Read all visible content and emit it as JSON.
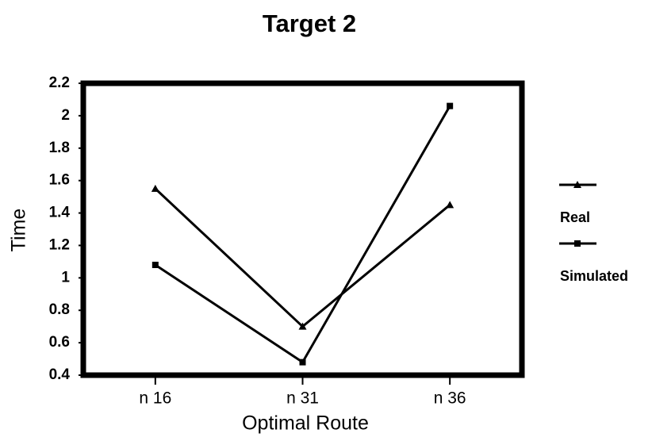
{
  "chart_data": {
    "type": "line",
    "title": "Target 2",
    "x_label": "Optimal Route",
    "y_label": "Time",
    "categories": [
      "n 16",
      "n 31",
      "n 36"
    ],
    "series": [
      {
        "name": "Real",
        "color": "#000000",
        "marker": "triangle",
        "values": [
          1.55,
          0.7,
          1.45
        ]
      },
      {
        "name": "Simulated",
        "color": "#000000",
        "marker": "square",
        "values": [
          1.08,
          0.48,
          2.06
        ]
      }
    ],
    "ylim": [
      0.4,
      2.2
    ],
    "yticks": [
      0.4,
      0.6,
      0.8,
      1,
      1.2,
      1.4,
      1.6,
      1.8,
      2,
      2.2
    ],
    "legend": "right"
  }
}
